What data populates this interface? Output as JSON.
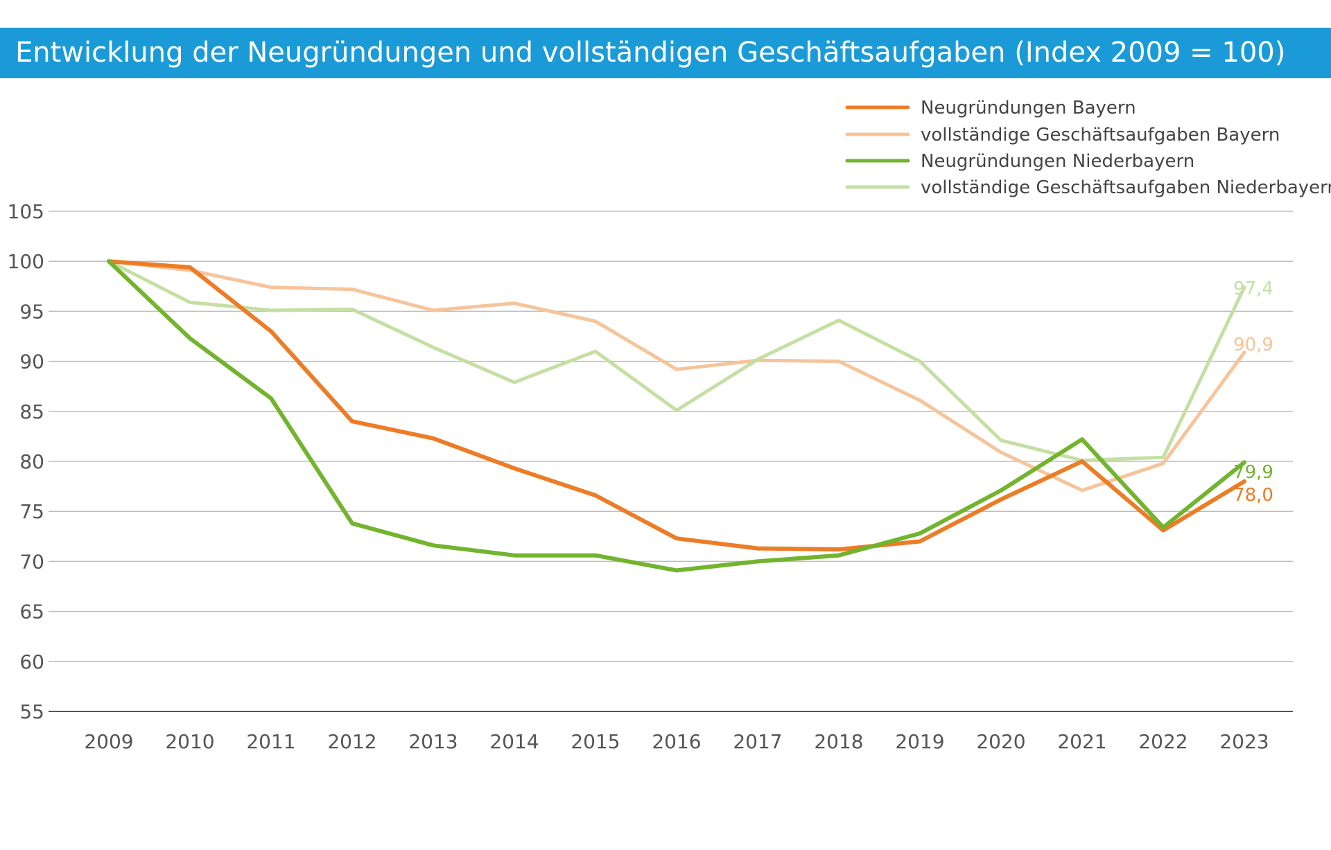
{
  "header": {
    "title": "Entwicklung der Neugründungen und vollständigen Geschäftsaufgaben (Index 2009 = 100)"
  },
  "chart_data": {
    "type": "line",
    "title": "Entwicklung der Neugründungen und vollständigen Geschäftsaufgaben (Index 2009 = 100)",
    "x": [
      "2009",
      "2010",
      "2011",
      "2012",
      "2013",
      "2014",
      "2015",
      "2016",
      "2017",
      "2018",
      "2019",
      "2020",
      "2021",
      "2022",
      "2023"
    ],
    "y_ticks": [
      "55",
      "60",
      "65",
      "70",
      "75",
      "80",
      "85",
      "90",
      "95",
      "100",
      "105"
    ],
    "ylim": [
      55,
      105
    ],
    "grid": true,
    "legend_position": "top-right",
    "series": [
      {
        "name": "Neugründungen Bayern",
        "color": "#ec7c26",
        "width": 6,
        "values": [
          100,
          99.4,
          93.0,
          84.0,
          82.3,
          79.3,
          76.6,
          72.3,
          71.3,
          71.2,
          72.0,
          76.2,
          80.0,
          73.1,
          78.0
        ],
        "end_label": "78,0"
      },
      {
        "name": "vollständige Geschäftsaufgaben Bayern",
        "color": "#f6c49a",
        "width": 5,
        "values": [
          100,
          99.1,
          97.4,
          97.2,
          95.1,
          95.8,
          94.0,
          89.2,
          90.1,
          90.0,
          86.1,
          80.9,
          77.1,
          79.8,
          90.9
        ],
        "end_label": "90,9"
      },
      {
        "name": "Neugründungen Niederbayern",
        "color": "#72b42d",
        "width": 6,
        "values": [
          100,
          92.3,
          86.3,
          73.8,
          71.6,
          70.6,
          70.6,
          69.1,
          70.0,
          70.6,
          72.8,
          77.1,
          82.2,
          73.4,
          79.9
        ],
        "end_label": "79,9"
      },
      {
        "name": "vollständige Geschäftsaufgaben Niederbayern",
        "color": "#c5dfa3",
        "width": 5,
        "values": [
          100,
          95.9,
          95.1,
          95.2,
          91.4,
          87.9,
          91.0,
          85.1,
          90.2,
          94.1,
          90.0,
          82.1,
          80.1,
          80.4,
          97.4
        ],
        "end_label": "97,4"
      }
    ]
  }
}
